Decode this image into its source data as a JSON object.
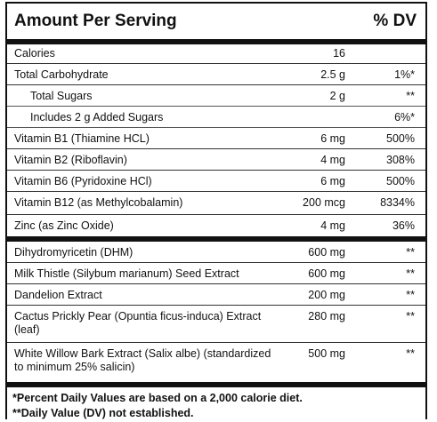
{
  "header": {
    "title": "Amount Per Serving",
    "dv": "% DV"
  },
  "sections": [
    [
      {
        "name": "Calories",
        "amount": "16"
      },
      {
        "name": "Total Carbohydrate",
        "amount": "2.5 g",
        "dv": "1%*"
      },
      {
        "name": "Total Sugars",
        "amount": "2 g",
        "dv": "**"
      },
      {
        "name": "Includes 2 g Added Sugars",
        "dv": "6%*"
      },
      {
        "name": "Vitamin B1 (Thiamine HCL)",
        "amount": "6 mg",
        "dv": "500%"
      },
      {
        "name": "Vitamin B2 (Riboflavin)",
        "amount": "4 mg",
        "dv": "308%"
      },
      {
        "name": "Vitamin B6 (Pyridoxine HCl)",
        "amount": "6 mg",
        "dv": "500%"
      },
      {
        "name": "Vitamin B12 (as Methylcobalamin)",
        "amount": "200 mcg",
        "dv": "8334%"
      },
      {
        "name": "Zinc (as Zinc Oxide)",
        "amount": "4 mg",
        "dv": "36%"
      }
    ],
    [
      {
        "name": "Dihydromyricetin (DHM)",
        "amount": "600 mg",
        "dv": "**"
      },
      {
        "name": "Milk Thistle (Silybum marianum) Seed Extract",
        "amount": "600 mg",
        "dv": "**"
      },
      {
        "name": "Dandelion Extract",
        "amount": "200 mg",
        "dv": "**"
      },
      {
        "name": "Cactus Prickly Pear (Opuntia ficus-induca) Extract (leaf)",
        "amount": "280 mg",
        "dv": "**"
      },
      {
        "name": "White Willow Bark Extract (Salix albe) (standardized to minimum 25% salicin)",
        "amount": "500 mg",
        "dv": "**"
      }
    ]
  ],
  "notes": [
    "*Percent Daily Values are based on a 2,000 calorie diet.",
    "**Daily Value (DV) not established."
  ]
}
